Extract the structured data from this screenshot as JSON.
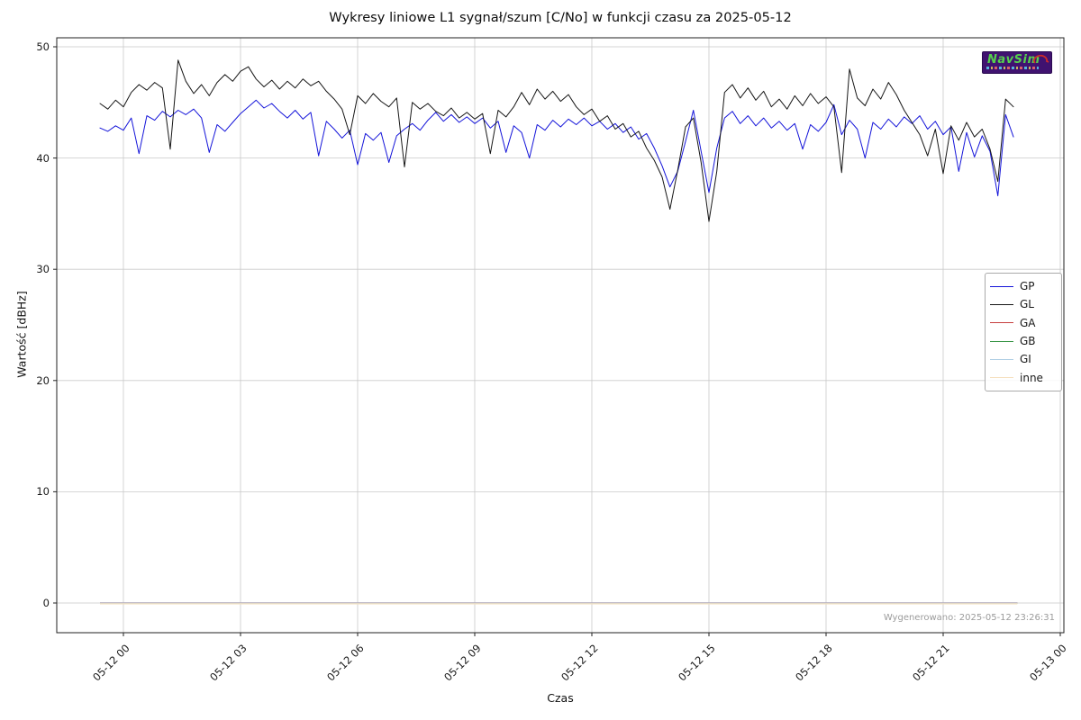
{
  "chart_data": {
    "type": "line",
    "title": "Wykresy liniowe L1 sygnał/szum [C/No] w funkcji czasu za 2025-05-12",
    "xlabel": "Czas",
    "ylabel": "Wartość [dBHz]",
    "grid": true,
    "x_unit": "hours relative to 2025-05-12 00:00",
    "x_ticks": {
      "hours": [
        0,
        3,
        6,
        9,
        12,
        15,
        18,
        21,
        24
      ],
      "labels": [
        "05-12 00",
        "05-12 03",
        "05-12 06",
        "05-12 09",
        "05-12 12",
        "05-12 15",
        "05-12 18",
        "05-12 21",
        "05-13 00"
      ]
    },
    "y_ticks": [
      0,
      10,
      20,
      30,
      40,
      50
    ],
    "ylim": [
      -2.7,
      50.8
    ],
    "xlim_hours": [
      -1.71,
      24.09
    ],
    "legend": {
      "position": "right",
      "entries": [
        {
          "name": "GP",
          "color": "#1414d9"
        },
        {
          "name": "GL",
          "color": "#161616"
        },
        {
          "name": "GA",
          "color": "#c73e3e"
        },
        {
          "name": "GB",
          "color": "#31913f"
        },
        {
          "name": "GI",
          "color": "#aecde3"
        },
        {
          "name": "inne",
          "color": "#f6dfbd"
        }
      ]
    },
    "series": [
      {
        "name": "GP",
        "color": "#1414d9",
        "t_start": -0.6,
        "t_step": 0.2,
        "values": [
          42.7,
          42.4,
          42.9,
          42.5,
          43.6,
          40.4,
          43.8,
          43.4,
          44.2,
          43.7,
          44.3,
          43.9,
          44.4,
          43.6,
          40.5,
          43.0,
          42.4,
          43.2,
          44.0,
          44.6,
          45.2,
          44.5,
          44.9,
          44.2,
          43.6,
          44.3,
          43.5,
          44.1,
          40.2,
          43.3,
          42.6,
          41.8,
          42.5,
          39.4,
          42.2,
          41.6,
          42.3,
          39.6,
          42.0,
          42.6,
          43.1,
          42.5,
          43.4,
          44.1,
          43.3,
          43.9,
          43.2,
          43.7,
          43.1,
          43.6,
          42.7,
          43.3,
          40.5,
          42.9,
          42.3,
          40.0,
          43.0,
          42.5,
          43.4,
          42.8,
          43.5,
          43.0,
          43.6,
          42.9,
          43.3,
          42.6,
          43.1,
          42.3,
          42.8,
          41.7,
          42.2,
          40.9,
          39.3,
          37.4,
          38.8,
          41.5,
          44.3,
          40.6,
          36.9,
          40.9,
          43.6,
          44.2,
          43.1,
          43.8,
          42.9,
          43.6,
          42.7,
          43.3,
          42.5,
          43.1,
          40.8,
          43.0,
          42.4,
          43.2,
          44.8,
          42.1,
          43.4,
          42.6,
          40.0,
          43.2,
          42.6,
          43.5,
          42.8,
          43.7,
          43.1,
          43.8,
          42.6,
          43.3,
          42.1,
          42.8,
          38.8,
          42.3,
          40.1,
          42.0,
          40.6,
          36.6,
          43.9,
          41.9
        ]
      },
      {
        "name": "GL",
        "color": "#161616",
        "t_start": -0.6,
        "t_step": 0.2,
        "values": [
          44.9,
          44.4,
          45.2,
          44.6,
          45.9,
          46.6,
          46.1,
          46.8,
          46.3,
          40.8,
          48.8,
          46.9,
          45.8,
          46.6,
          45.6,
          46.8,
          47.5,
          46.9,
          47.8,
          48.2,
          47.1,
          46.4,
          47.0,
          46.2,
          46.9,
          46.3,
          47.1,
          46.5,
          46.9,
          46.0,
          45.3,
          44.4,
          42.1,
          45.6,
          44.9,
          45.8,
          45.1,
          44.6,
          45.4,
          39.2,
          45.0,
          44.4,
          44.9,
          44.2,
          43.8,
          44.5,
          43.6,
          44.1,
          43.5,
          44.0,
          40.4,
          44.3,
          43.7,
          44.6,
          45.9,
          44.8,
          46.2,
          45.3,
          46.0,
          45.1,
          45.7,
          44.6,
          43.9,
          44.4,
          43.3,
          43.8,
          42.6,
          43.1,
          41.9,
          42.4,
          40.9,
          39.8,
          38.3,
          35.4,
          38.9,
          42.8,
          43.6,
          39.6,
          34.3,
          38.8,
          45.9,
          46.6,
          45.4,
          46.3,
          45.2,
          46.0,
          44.6,
          45.3,
          44.4,
          45.6,
          44.7,
          45.8,
          44.9,
          45.5,
          44.6,
          38.7,
          48.0,
          45.4,
          44.7,
          46.2,
          45.3,
          46.8,
          45.7,
          44.3,
          43.2,
          42.1,
          40.2,
          42.6,
          38.6,
          42.9,
          41.6,
          43.2,
          41.9,
          42.6,
          40.8,
          37.9,
          45.3,
          44.6
        ]
      },
      {
        "name": "GA",
        "color": "#c73e3e",
        "const_value": 0,
        "t_range": [
          -0.6,
          22.9
        ]
      },
      {
        "name": "GB",
        "color": "#31913f",
        "const_value": 0,
        "t_range": [
          -0.6,
          22.9
        ]
      },
      {
        "name": "GI",
        "color": "#aecde3",
        "const_value": 0,
        "t_range": [
          -0.6,
          22.9
        ]
      },
      {
        "name": "inne",
        "color": "#f6dfbd",
        "const_value": 0,
        "t_range": [
          -0.6,
          22.9
        ]
      }
    ],
    "annotations": {
      "generated_label": "Wygenerowano: 2025-05-12 23:26:31"
    },
    "logo_text": "NavSim"
  }
}
